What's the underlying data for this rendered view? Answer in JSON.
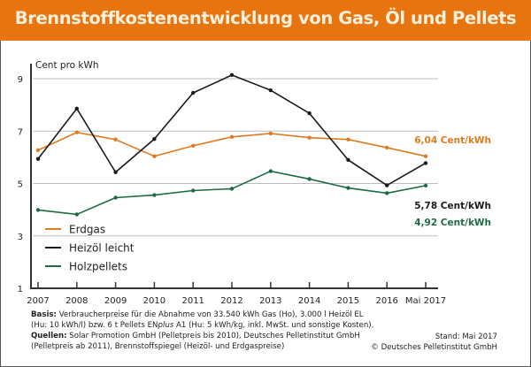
{
  "title": "Brennstoffkostenentwicklung von Gas, Öl und Pellets",
  "colors": {
    "title_bar": "#e8740f",
    "title_text": "#fdf1dc",
    "erdgas": "#e07a1f",
    "heizoel": "#1a1a1a",
    "holzpellets": "#1c6b45",
    "grid": "#bdbdbd"
  },
  "chart_data": {
    "type": "line",
    "title": "Brennstoffkostenentwicklung von Gas, Öl und Pellets",
    "ylabel": "Cent pro kWh",
    "xlabel": "",
    "ylim": [
      1,
      9
    ],
    "yticks": [
      1,
      3,
      5,
      7,
      9
    ],
    "grid": true,
    "legend_position": "bottom-left",
    "categories": [
      "2007",
      "2008",
      "2009",
      "2010",
      "2011",
      "2012",
      "2013",
      "2014",
      "2015",
      "2016",
      "Mai 2017"
    ],
    "series": [
      {
        "name": "Erdgas",
        "color": "#e07a1f",
        "values": [
          6.27,
          6.95,
          6.68,
          6.04,
          6.44,
          6.78,
          6.91,
          6.75,
          6.68,
          6.37,
          6.04
        ],
        "end_label": "6,04 Cent/kWh"
      },
      {
        "name": "Heizöl leicht",
        "color": "#1a1a1a",
        "values": [
          5.94,
          7.86,
          5.43,
          6.7,
          8.46,
          9.14,
          8.56,
          7.68,
          5.9,
          4.93,
          5.78
        ],
        "end_label": "5,78 Cent/kWh"
      },
      {
        "name": "Holzpellets",
        "color": "#1c6b45",
        "values": [
          3.99,
          3.82,
          4.46,
          4.56,
          4.73,
          4.8,
          5.47,
          5.17,
          4.83,
          4.63,
          4.92
        ],
        "end_label": "4,92 Cent/kWh"
      }
    ]
  },
  "footer": {
    "basis_label": "Basis:",
    "basis_line1": " Verbraucherpreise für die Abnahme von 33.540 kWh Gas (Ho), 3.000 l Heizöl EL",
    "basis_line2_a": "(Hu: 10 kWh/l) bzw. 6 t Pellets EN",
    "basis_line2_italic": "plus",
    "basis_line2_b": " A1 (Hu: 5 kWh/kg, inkl. MwSt. und sonstige Kosten).",
    "quellen_label": "Quellen:",
    "quellen_line1": " Solar Promotion GmbH (Pelletpreis bis 2010), Deutsches Pelletinstitut GmbH",
    "quellen_line2": "(Pelletpreis ab 2011), Brennstoffspiegel (Heizöl- und Erdgaspreise)",
    "stand": "Stand: Mai 2017",
    "copyright": "© Deutsches Pelletinstitut GmbH"
  }
}
